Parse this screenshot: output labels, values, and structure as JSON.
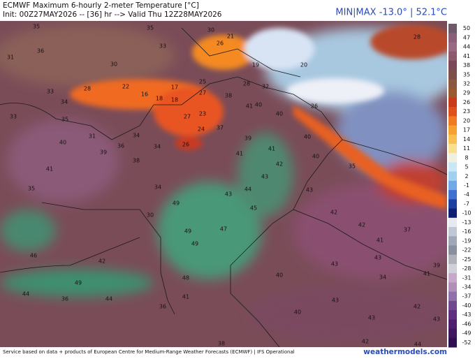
{
  "header": {
    "title": "ECMWF Maximum 6-hourly 2-meter Temperature [°C]",
    "subtitle": "Init: 00Z27MAY2026 -- [36] hr --> Valid Thu 12Z28MAY2026",
    "minmax": "MIN|MAX -13.0° | 52.1°C"
  },
  "colorbar": {
    "values": [
      50,
      47,
      44,
      41,
      38,
      35,
      32,
      29,
      26,
      23,
      20,
      17,
      14,
      11,
      8,
      5,
      2,
      -1,
      -4,
      -7,
      -10,
      -13,
      -16,
      -19,
      -22,
      -25,
      -28,
      -31,
      -34,
      -37,
      -40,
      -43,
      -46,
      -49,
      -52
    ],
    "colors": [
      "#6e5a6a",
      "#8a5f78",
      "#9a6a82",
      "#8c5a6c",
      "#7a4a5a",
      "#7a5048",
      "#8a5a40",
      "#9a5a30",
      "#c83a1a",
      "#e0501a",
      "#f07a20",
      "#f5a030",
      "#f8c050",
      "#f8e090",
      "#f0f0e0",
      "#c8e8f8",
      "#a0d0f0",
      "#70a8e8",
      "#4070d0",
      "#2040a0",
      "#102070",
      "#e8e8f0",
      "#c0c8d8",
      "#a0a8b8",
      "#8890a0",
      "#b0b0b8",
      "#d0d0d8",
      "#c8a8c8",
      "#b090b8",
      "#9070a8",
      "#704890",
      "#603080",
      "#502070",
      "#401860",
      "#301050"
    ]
  },
  "map_labels": [
    35,
    35,
    30,
    21,
    28,
    31,
    33,
    36,
    30,
    26,
    20,
    19,
    28,
    22,
    33,
    16,
    17,
    25,
    27,
    28,
    38,
    32,
    18,
    18,
    34,
    41,
    40,
    33,
    35,
    23,
    27,
    40,
    26,
    37,
    24,
    34,
    31,
    40,
    36,
    34,
    26,
    39,
    40,
    41,
    39,
    38,
    41,
    40,
    42,
    41,
    35,
    35,
    34,
    43,
    44,
    43,
    43,
    49,
    45,
    42,
    30,
    42,
    37,
    49,
    47,
    49,
    41,
    46,
    42,
    43,
    43,
    39,
    48,
    40,
    41,
    49,
    34,
    44,
    36,
    41,
    43,
    44,
    36,
    42,
    43,
    40,
    43,
    42,
    44,
    38
  ],
  "footer": {
    "credit": "Service based on data + products of European Centre for Medium-Range Weather Forecasts (ECMWF) | IFS Operational",
    "site": "weathermodels.com"
  }
}
